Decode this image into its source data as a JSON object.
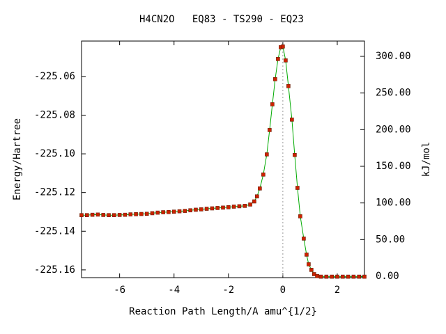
{
  "chart_data": {
    "type": "line",
    "title": "H4CN2O   EQ83 - TS290 - EQ23",
    "xlabel": "Reaction Path Length/A amu^{1/2}",
    "ylabel": "Energy/Hartree",
    "y2label": "kJ/mol",
    "xlim": [
      -7.4,
      3.0
    ],
    "xticks": [
      -6,
      -4,
      -2,
      0,
      2
    ],
    "ylim": [
      -225.164,
      -225.0417
    ],
    "yticks": [
      -225.06,
      -225.08,
      {
        "value": -225.1,
        "label": "-225.10"
      },
      -225.12,
      -225.14,
      -225.16
    ],
    "y2lim": [
      -1.9,
      320.9
    ],
    "y2ticks": [
      {
        "value": 0,
        "label": "0.00"
      },
      {
        "value": 50,
        "label": "50.00"
      },
      {
        "value": 100,
        "label": "100.00"
      },
      {
        "value": 150,
        "label": "150.00"
      },
      {
        "value": 200,
        "label": "200.00"
      },
      {
        "value": 250,
        "label": "250.00"
      },
      {
        "value": 300,
        "label": "300.00"
      }
    ],
    "x": [
      -7.4,
      -7.2,
      -7.0,
      -6.8,
      -6.6,
      -6.4,
      -6.2,
      -6.0,
      -5.8,
      -5.6,
      -5.4,
      -5.2,
      -5.0,
      -4.8,
      -4.6,
      -4.4,
      -4.2,
      -4.0,
      -3.8,
      -3.6,
      -3.4,
      -3.2,
      -3.0,
      -2.8,
      -2.6,
      -2.4,
      -2.2,
      -2.0,
      -1.8,
      -1.6,
      -1.4,
      -1.2,
      -1.05,
      -0.95,
      -0.846,
      -0.718,
      -0.59,
      -0.487,
      -0.385,
      -0.282,
      -0.179,
      -0.077,
      0,
      0.103,
      0.205,
      0.333,
      0.436,
      0.538,
      0.641,
      0.769,
      0.872,
      0.949,
      1.05,
      1.15,
      1.26,
      1.4,
      1.6,
      1.8,
      2.0,
      2.2,
      2.4,
      2.6,
      2.8,
      3.0
    ],
    "series": [
      {
        "color": "#cc2200",
        "line_color": "#00aa00",
        "values": [
          -225.1317,
          -225.1317,
          -225.1315,
          -225.1314,
          -225.1316,
          -225.1317,
          -225.1317,
          -225.1316,
          -225.1315,
          -225.1313,
          -225.1312,
          -225.1311,
          -225.131,
          -225.1307,
          -225.1304,
          -225.1302,
          -225.1301,
          -225.1299,
          -225.1297,
          -225.1295,
          -225.1292,
          -225.1289,
          -225.1287,
          -225.1284,
          -225.1282,
          -225.128,
          -225.1278,
          -225.1276,
          -225.1273,
          -225.1271,
          -225.1269,
          -225.1262,
          -225.1246,
          -225.122,
          -225.1179,
          -225.1107,
          -225.1003,
          -225.0877,
          -225.0744,
          -225.0614,
          -225.051,
          -225.0449,
          -225.0445,
          -225.0517,
          -225.065,
          -225.0823,
          -225.1006,
          -225.1176,
          -225.1323,
          -225.1438,
          -225.1521,
          -225.1571,
          -225.16,
          -225.1622,
          -225.1632,
          -225.1635,
          -225.1635,
          -225.1635,
          -225.1635,
          -225.1635,
          -225.1635,
          -225.1635,
          -225.1635,
          -225.1635
        ]
      }
    ]
  }
}
